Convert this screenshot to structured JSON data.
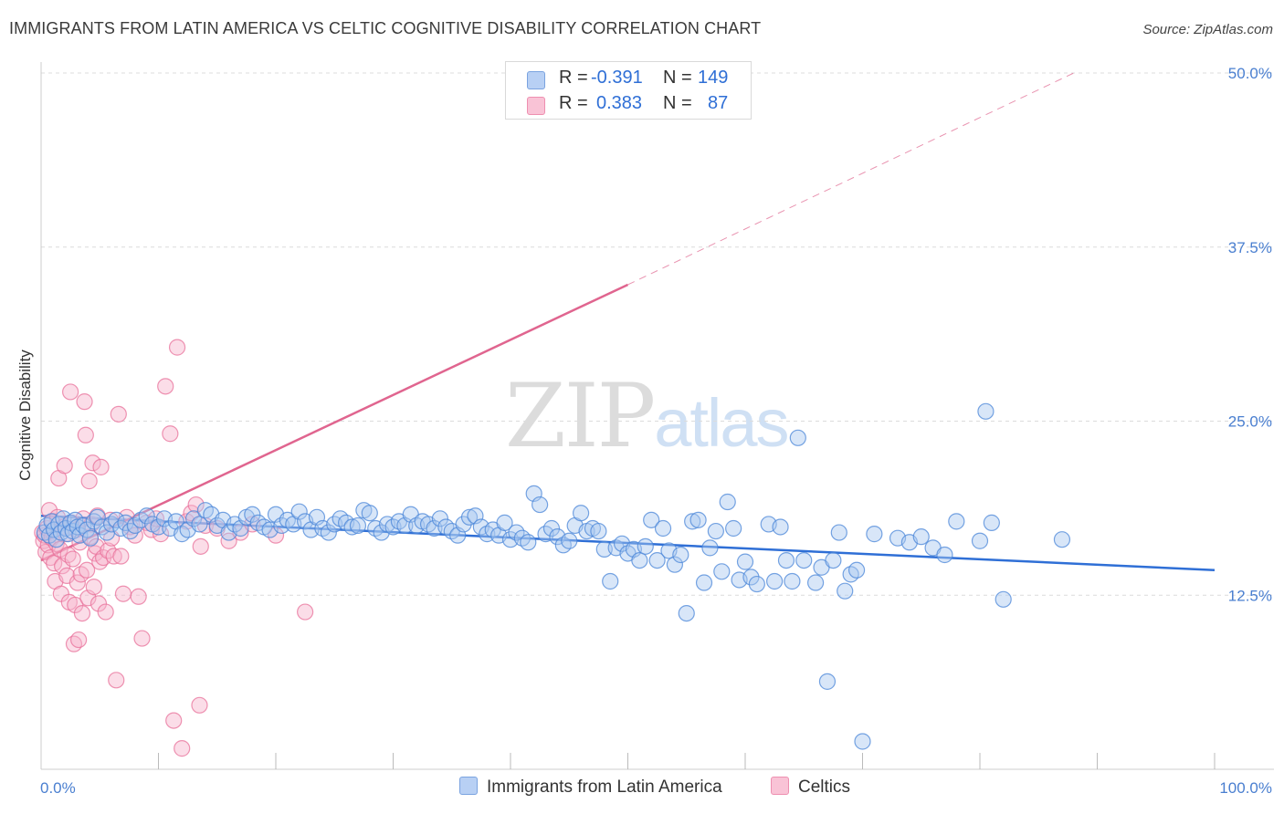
{
  "title": "IMMIGRANTS FROM LATIN AMERICA VS CELTIC COGNITIVE DISABILITY CORRELATION CHART",
  "source": "Source: ZipAtlas.com",
  "watermark": {
    "zip": "ZIP",
    "atlas": "atlas"
  },
  "legend": {
    "rows": [
      {
        "r_label": "R =",
        "r_value": "-0.391",
        "n_label": "N =",
        "n_value": "149",
        "color": "#7aa3e0"
      },
      {
        "r_label": "R =",
        "r_value": "0.383",
        "n_label": "N =",
        "n_value": "87",
        "color": "#ee8fb0"
      }
    ]
  },
  "chart_data": {
    "type": "scatter",
    "title": "IMMIGRANTS FROM LATIN AMERICA VS CELTIC COGNITIVE DISABILITY CORRELATION CHART",
    "xlabel": "",
    "ylabel": "Cognitive Disability",
    "xlim": [
      0,
      100
    ],
    "ylim": [
      0,
      50
    ],
    "x_tick_labels": [
      "0.0%",
      "100.0%"
    ],
    "y_ticks": [
      12.5,
      25.0,
      37.5,
      50.0
    ],
    "y_tick_labels": [
      "12.5%",
      "25.0%",
      "37.5%",
      "50.0%"
    ],
    "grid": true,
    "series": [
      {
        "name": "Immigrants from Latin America",
        "color": "#4a86d8",
        "fill": "#a9c7f0",
        "points": [
          [
            0.3,
            17.0
          ],
          [
            0.5,
            17.5
          ],
          [
            0.7,
            16.8
          ],
          [
            0.9,
            17.8
          ],
          [
            1.1,
            17.2
          ],
          [
            1.3,
            16.5
          ],
          [
            1.5,
            17.6
          ],
          [
            1.7,
            17.0
          ],
          [
            1.9,
            18.0
          ],
          [
            2.1,
            17.3
          ],
          [
            2.3,
            16.9
          ],
          [
            2.5,
            17.7
          ],
          [
            2.7,
            17.1
          ],
          [
            2.9,
            17.9
          ],
          [
            3.1,
            17.4
          ],
          [
            3.3,
            16.8
          ],
          [
            3.6,
            17.5
          ],
          [
            3.9,
            17.2
          ],
          [
            4.2,
            16.6
          ],
          [
            4.5,
            17.8
          ],
          [
            4.8,
            18.1
          ],
          [
            5.2,
            17.4
          ],
          [
            5.6,
            17.0
          ],
          [
            6.0,
            17.6
          ],
          [
            6.4,
            17.9
          ],
          [
            6.8,
            17.3
          ],
          [
            7.2,
            17.7
          ],
          [
            7.6,
            17.1
          ],
          [
            8.0,
            17.5
          ],
          [
            8.5,
            17.9
          ],
          [
            9.0,
            18.2
          ],
          [
            9.5,
            17.6
          ],
          [
            10.0,
            17.4
          ],
          [
            10.5,
            18.0
          ],
          [
            11.0,
            17.3
          ],
          [
            11.5,
            17.8
          ],
          [
            12.0,
            16.9
          ],
          [
            12.5,
            17.2
          ],
          [
            13.0,
            18.0
          ],
          [
            13.5,
            17.6
          ],
          [
            14.0,
            18.6
          ],
          [
            14.5,
            18.3
          ],
          [
            15.0,
            17.5
          ],
          [
            15.5,
            17.9
          ],
          [
            16.0,
            17.0
          ],
          [
            16.5,
            17.6
          ],
          [
            17.0,
            17.3
          ],
          [
            17.5,
            18.1
          ],
          [
            18.0,
            18.3
          ],
          [
            18.5,
            17.7
          ],
          [
            19.0,
            17.4
          ],
          [
            19.5,
            17.2
          ],
          [
            20.0,
            18.3
          ],
          [
            20.5,
            17.5
          ],
          [
            21.0,
            17.9
          ],
          [
            21.5,
            17.6
          ],
          [
            22.0,
            18.5
          ],
          [
            22.5,
            17.8
          ],
          [
            23.0,
            17.2
          ],
          [
            23.5,
            18.1
          ],
          [
            24.0,
            17.3
          ],
          [
            24.5,
            17.0
          ],
          [
            25.0,
            17.6
          ],
          [
            25.5,
            18.0
          ],
          [
            26.0,
            17.7
          ],
          [
            26.5,
            17.4
          ],
          [
            27.0,
            17.5
          ],
          [
            27.5,
            18.6
          ],
          [
            28.0,
            18.4
          ],
          [
            28.5,
            17.3
          ],
          [
            29.0,
            17.0
          ],
          [
            29.5,
            17.6
          ],
          [
            30.0,
            17.4
          ],
          [
            30.5,
            17.8
          ],
          [
            31.0,
            17.5
          ],
          [
            31.5,
            18.3
          ],
          [
            32.0,
            17.5
          ],
          [
            32.5,
            17.8
          ],
          [
            33.0,
            17.6
          ],
          [
            33.5,
            17.3
          ],
          [
            34.0,
            18.0
          ],
          [
            34.5,
            17.4
          ],
          [
            35.0,
            17.1
          ],
          [
            35.5,
            16.8
          ],
          [
            36.0,
            17.6
          ],
          [
            36.5,
            18.1
          ],
          [
            37.0,
            18.2
          ],
          [
            37.5,
            17.4
          ],
          [
            38.0,
            16.9
          ],
          [
            38.5,
            17.2
          ],
          [
            39.0,
            16.8
          ],
          [
            39.5,
            17.7
          ],
          [
            40.0,
            16.5
          ],
          [
            40.5,
            17.0
          ],
          [
            41.0,
            16.6
          ],
          [
            41.5,
            16.3
          ],
          [
            42.0,
            19.8
          ],
          [
            42.5,
            19.0
          ],
          [
            43.0,
            16.9
          ],
          [
            43.5,
            17.3
          ],
          [
            44.0,
            16.7
          ],
          [
            44.5,
            16.1
          ],
          [
            45.0,
            16.4
          ],
          [
            45.5,
            17.5
          ],
          [
            46.0,
            18.4
          ],
          [
            46.5,
            17.1
          ],
          [
            47.0,
            17.3
          ],
          [
            47.5,
            17.1
          ],
          [
            48.0,
            15.8
          ],
          [
            48.5,
            13.5
          ],
          [
            49.0,
            15.9
          ],
          [
            49.5,
            16.2
          ],
          [
            50.0,
            15.5
          ],
          [
            50.5,
            15.8
          ],
          [
            51.0,
            15.0
          ],
          [
            51.5,
            16.0
          ],
          [
            52.0,
            17.9
          ],
          [
            52.5,
            15.0
          ],
          [
            53.0,
            17.3
          ],
          [
            53.5,
            15.7
          ],
          [
            54.0,
            14.7
          ],
          [
            54.5,
            15.4
          ],
          [
            55.0,
            11.2
          ],
          [
            55.5,
            17.8
          ],
          [
            56.0,
            17.9
          ],
          [
            56.5,
            13.4
          ],
          [
            57.0,
            15.9
          ],
          [
            57.5,
            17.1
          ],
          [
            58.0,
            14.2
          ],
          [
            58.5,
            19.2
          ],
          [
            59.0,
            17.3
          ],
          [
            59.5,
            13.6
          ],
          [
            60.0,
            14.9
          ],
          [
            60.5,
            13.8
          ],
          [
            61.0,
            13.3
          ],
          [
            62.0,
            17.6
          ],
          [
            62.5,
            13.5
          ],
          [
            63.0,
            17.4
          ],
          [
            63.5,
            15.0
          ],
          [
            64.0,
            13.5
          ],
          [
            64.5,
            23.8
          ],
          [
            65.0,
            15.0
          ],
          [
            66.0,
            13.4
          ],
          [
            66.5,
            14.5
          ],
          [
            67.0,
            6.3
          ],
          [
            67.5,
            15.0
          ],
          [
            68.0,
            17.0
          ],
          [
            68.5,
            12.8
          ],
          [
            69.0,
            14.0
          ],
          [
            69.5,
            14.3
          ],
          [
            70.0,
            2.0
          ],
          [
            71.0,
            16.9
          ],
          [
            73.0,
            16.6
          ],
          [
            74.0,
            16.3
          ],
          [
            75.0,
            16.7
          ],
          [
            76.0,
            15.9
          ],
          [
            77.0,
            15.4
          ],
          [
            78.0,
            17.8
          ],
          [
            80.0,
            16.4
          ],
          [
            80.5,
            25.7
          ],
          [
            81.0,
            17.7
          ],
          [
            82.0,
            12.2
          ],
          [
            87.0,
            16.5
          ]
        ]
      },
      {
        "name": "Celtics",
        "color": "#e8709a",
        "fill": "#f6b4cb",
        "points": [
          [
            0.1,
            17.0
          ],
          [
            0.2,
            16.4
          ],
          [
            0.3,
            16.8
          ],
          [
            0.4,
            15.6
          ],
          [
            0.5,
            17.3
          ],
          [
            0.6,
            16.1
          ],
          [
            0.7,
            18.6
          ],
          [
            0.8,
            15.2
          ],
          [
            0.9,
            16.6
          ],
          [
            1.0,
            17.8
          ],
          [
            1.1,
            14.8
          ],
          [
            1.2,
            13.5
          ],
          [
            1.3,
            16.2
          ],
          [
            1.4,
            18.1
          ],
          [
            1.5,
            20.9
          ],
          [
            1.6,
            15.8
          ],
          [
            1.7,
            12.6
          ],
          [
            1.8,
            14.6
          ],
          [
            1.9,
            17.4
          ],
          [
            2.0,
            21.8
          ],
          [
            2.1,
            16.9
          ],
          [
            2.2,
            13.9
          ],
          [
            2.3,
            15.4
          ],
          [
            2.4,
            12.0
          ],
          [
            2.5,
            27.1
          ],
          [
            2.6,
            17.7
          ],
          [
            2.7,
            15.1
          ],
          [
            2.8,
            9.0
          ],
          [
            2.9,
            11.8
          ],
          [
            3.0,
            17.2
          ],
          [
            3.1,
            13.4
          ],
          [
            3.2,
            9.3
          ],
          [
            3.3,
            16.3
          ],
          [
            3.4,
            14.0
          ],
          [
            3.5,
            11.2
          ],
          [
            3.6,
            18.0
          ],
          [
            3.7,
            26.4
          ],
          [
            3.8,
            24.0
          ],
          [
            3.9,
            14.3
          ],
          [
            4.0,
            12.3
          ],
          [
            4.1,
            20.7
          ],
          [
            4.2,
            16.7
          ],
          [
            4.3,
            17.6
          ],
          [
            4.4,
            22.0
          ],
          [
            4.5,
            13.1
          ],
          [
            4.6,
            15.5
          ],
          [
            4.7,
            16.0
          ],
          [
            4.8,
            18.2
          ],
          [
            4.9,
            11.9
          ],
          [
            5.0,
            14.9
          ],
          [
            5.1,
            21.7
          ],
          [
            5.3,
            15.2
          ],
          [
            5.5,
            11.3
          ],
          [
            5.7,
            15.7
          ],
          [
            5.9,
            17.9
          ],
          [
            6.0,
            16.6
          ],
          [
            6.2,
            15.3
          ],
          [
            6.4,
            6.4
          ],
          [
            6.6,
            25.5
          ],
          [
            6.8,
            15.3
          ],
          [
            7.0,
            12.6
          ],
          [
            7.3,
            18.1
          ],
          [
            7.6,
            17.4
          ],
          [
            8.0,
            16.8
          ],
          [
            8.3,
            12.4
          ],
          [
            8.6,
            9.4
          ],
          [
            9.0,
            17.7
          ],
          [
            9.4,
            17.2
          ],
          [
            9.8,
            18.0
          ],
          [
            10.2,
            16.9
          ],
          [
            10.6,
            27.5
          ],
          [
            11.0,
            24.1
          ],
          [
            11.3,
            3.5
          ],
          [
            11.6,
            30.3
          ],
          [
            12.0,
            1.5
          ],
          [
            12.4,
            17.8
          ],
          [
            12.8,
            18.4
          ],
          [
            13.2,
            19.0
          ],
          [
            13.6,
            16.0
          ],
          [
            14.0,
            17.5
          ],
          [
            15.0,
            17.3
          ],
          [
            16.0,
            16.4
          ],
          [
            17.0,
            17.0
          ],
          [
            18.0,
            17.6
          ],
          [
            20.0,
            16.8
          ],
          [
            22.5,
            11.3
          ],
          [
            13.5,
            4.6
          ]
        ]
      }
    ],
    "trend_lines": [
      {
        "series": "Immigrants from Latin America",
        "style": "solid",
        "x": [
          0,
          100
        ],
        "y": [
          18.2,
          14.3
        ]
      },
      {
        "series": "Celtics",
        "style": "solid",
        "x": [
          0,
          50
        ],
        "y": [
          15.0,
          34.8
        ]
      },
      {
        "series": "Celtics",
        "style": "dashed",
        "x": [
          50,
          88
        ],
        "y": [
          34.8,
          50.0
        ]
      }
    ]
  },
  "bottom_legend": [
    {
      "label": "Immigrants from Latin America",
      "color": "#7aa3e0"
    },
    {
      "label": "Celtics",
      "color": "#ee8fb0"
    }
  ]
}
